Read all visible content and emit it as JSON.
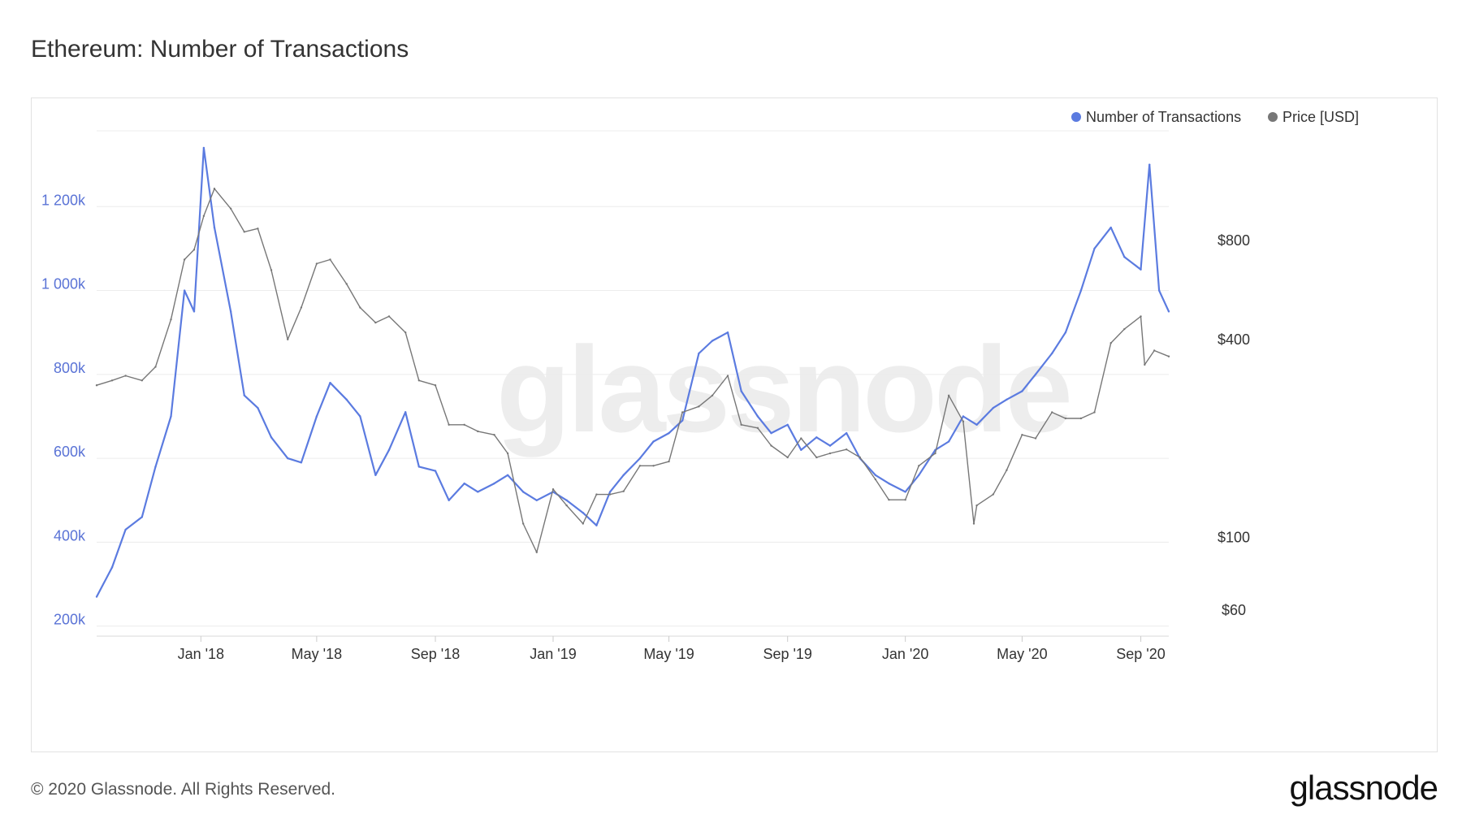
{
  "title": "Ethereum: Number of Transactions",
  "footer": "© 2020 Glassnode. All Rights Reserved.",
  "brand": "glassnode",
  "watermark": "glassnode",
  "colors": {
    "transactions": "#5b7be0",
    "price": "#777777",
    "grid": "#ececec"
  },
  "chart_data": {
    "type": "line",
    "x_range": [
      "2017-09-15",
      "2020-09-30"
    ],
    "left_axis": {
      "ticks": [
        200000,
        400000,
        600000,
        800000,
        1000000,
        1200000
      ],
      "tick_labels": [
        "200k",
        "400k",
        "600k",
        "800k",
        "1 000k",
        "1 200k"
      ],
      "range": [
        180000,
        1400000
      ]
    },
    "right_axis": {
      "scale": "log",
      "ticks": [
        60,
        100,
        400,
        800
      ],
      "tick_labels": [
        "$60",
        "$100",
        "$400",
        "$800"
      ]
    },
    "x_ticks": [
      {
        "date": "2018-01-01",
        "label": "Jan '18"
      },
      {
        "date": "2018-05-01",
        "label": "May '18"
      },
      {
        "date": "2018-09-01",
        "label": "Sep '18"
      },
      {
        "date": "2019-01-01",
        "label": "Jan '19"
      },
      {
        "date": "2019-05-01",
        "label": "May '19"
      },
      {
        "date": "2019-09-01",
        "label": "Sep '19"
      },
      {
        "date": "2020-01-01",
        "label": "Jan '20"
      },
      {
        "date": "2020-05-01",
        "label": "May '20"
      },
      {
        "date": "2020-09-01",
        "label": "Sep '20"
      }
    ],
    "legend": {
      "position": "top-right",
      "entries": [
        "Number of Transactions",
        "Price [USD]"
      ]
    },
    "series": [
      {
        "name": "Number of Transactions",
        "axis": "left",
        "points": [
          [
            "2017-09-15",
            270000
          ],
          [
            "2017-10-01",
            340000
          ],
          [
            "2017-10-15",
            430000
          ],
          [
            "2017-11-01",
            460000
          ],
          [
            "2017-11-15",
            580000
          ],
          [
            "2017-12-01",
            700000
          ],
          [
            "2017-12-15",
            1000000
          ],
          [
            "2017-12-25",
            950000
          ],
          [
            "2018-01-04",
            1340000
          ],
          [
            "2018-01-15",
            1150000
          ],
          [
            "2018-02-01",
            950000
          ],
          [
            "2018-02-15",
            750000
          ],
          [
            "2018-03-01",
            720000
          ],
          [
            "2018-03-15",
            650000
          ],
          [
            "2018-04-01",
            600000
          ],
          [
            "2018-04-15",
            590000
          ],
          [
            "2018-05-01",
            700000
          ],
          [
            "2018-05-15",
            780000
          ],
          [
            "2018-06-01",
            740000
          ],
          [
            "2018-06-15",
            700000
          ],
          [
            "2018-07-01",
            560000
          ],
          [
            "2018-07-15",
            620000
          ],
          [
            "2018-08-01",
            710000
          ],
          [
            "2018-08-15",
            580000
          ],
          [
            "2018-09-01",
            570000
          ],
          [
            "2018-09-15",
            500000
          ],
          [
            "2018-10-01",
            540000
          ],
          [
            "2018-10-15",
            520000
          ],
          [
            "2018-11-01",
            540000
          ],
          [
            "2018-11-15",
            560000
          ],
          [
            "2018-12-01",
            520000
          ],
          [
            "2018-12-15",
            500000
          ],
          [
            "2019-01-01",
            520000
          ],
          [
            "2019-01-15",
            500000
          ],
          [
            "2019-02-01",
            470000
          ],
          [
            "2019-02-15",
            440000
          ],
          [
            "2019-03-01",
            520000
          ],
          [
            "2019-03-15",
            560000
          ],
          [
            "2019-04-01",
            600000
          ],
          [
            "2019-04-15",
            640000
          ],
          [
            "2019-05-01",
            660000
          ],
          [
            "2019-05-15",
            690000
          ],
          [
            "2019-06-01",
            850000
          ],
          [
            "2019-06-15",
            880000
          ],
          [
            "2019-07-01",
            900000
          ],
          [
            "2019-07-15",
            760000
          ],
          [
            "2019-08-01",
            700000
          ],
          [
            "2019-08-15",
            660000
          ],
          [
            "2019-09-01",
            680000
          ],
          [
            "2019-09-15",
            620000
          ],
          [
            "2019-10-01",
            650000
          ],
          [
            "2019-10-15",
            630000
          ],
          [
            "2019-11-01",
            660000
          ],
          [
            "2019-11-15",
            600000
          ],
          [
            "2019-12-01",
            560000
          ],
          [
            "2019-12-15",
            540000
          ],
          [
            "2020-01-01",
            520000
          ],
          [
            "2020-01-15",
            560000
          ],
          [
            "2020-02-01",
            620000
          ],
          [
            "2020-02-15",
            640000
          ],
          [
            "2020-03-01",
            700000
          ],
          [
            "2020-03-15",
            680000
          ],
          [
            "2020-04-01",
            720000
          ],
          [
            "2020-04-15",
            740000
          ],
          [
            "2020-05-01",
            760000
          ],
          [
            "2020-05-15",
            800000
          ],
          [
            "2020-06-01",
            850000
          ],
          [
            "2020-06-15",
            900000
          ],
          [
            "2020-07-01",
            1000000
          ],
          [
            "2020-07-15",
            1100000
          ],
          [
            "2020-08-01",
            1150000
          ],
          [
            "2020-08-15",
            1080000
          ],
          [
            "2020-09-01",
            1050000
          ],
          [
            "2020-09-10",
            1300000
          ],
          [
            "2020-09-20",
            1000000
          ],
          [
            "2020-09-30",
            950000
          ]
        ]
      },
      {
        "name": "Price [USD]",
        "axis": "right",
        "points": [
          [
            "2017-09-15",
            290
          ],
          [
            "2017-10-01",
            300
          ],
          [
            "2017-10-15",
            310
          ],
          [
            "2017-11-01",
            300
          ],
          [
            "2017-11-15",
            330
          ],
          [
            "2017-12-01",
            460
          ],
          [
            "2017-12-15",
            700
          ],
          [
            "2017-12-25",
            750
          ],
          [
            "2018-01-04",
            950
          ],
          [
            "2018-01-15",
            1150
          ],
          [
            "2018-02-01",
            1000
          ],
          [
            "2018-02-15",
            850
          ],
          [
            "2018-03-01",
            870
          ],
          [
            "2018-03-15",
            650
          ],
          [
            "2018-04-01",
            400
          ],
          [
            "2018-04-15",
            500
          ],
          [
            "2018-05-01",
            680
          ],
          [
            "2018-05-15",
            700
          ],
          [
            "2018-06-01",
            590
          ],
          [
            "2018-06-15",
            500
          ],
          [
            "2018-07-01",
            450
          ],
          [
            "2018-07-15",
            470
          ],
          [
            "2018-08-01",
            420
          ],
          [
            "2018-08-15",
            300
          ],
          [
            "2018-09-01",
            290
          ],
          [
            "2018-09-15",
            220
          ],
          [
            "2018-10-01",
            220
          ],
          [
            "2018-10-15",
            210
          ],
          [
            "2018-11-01",
            205
          ],
          [
            "2018-11-15",
            180
          ],
          [
            "2018-12-01",
            110
          ],
          [
            "2018-12-15",
            90
          ],
          [
            "2019-01-01",
            140
          ],
          [
            "2019-01-15",
            125
          ],
          [
            "2019-02-01",
            110
          ],
          [
            "2019-02-15",
            135
          ],
          [
            "2019-03-01",
            135
          ],
          [
            "2019-03-15",
            138
          ],
          [
            "2019-04-01",
            165
          ],
          [
            "2019-04-15",
            165
          ],
          [
            "2019-05-01",
            170
          ],
          [
            "2019-05-15",
            240
          ],
          [
            "2019-06-01",
            250
          ],
          [
            "2019-06-15",
            270
          ],
          [
            "2019-07-01",
            310
          ],
          [
            "2019-07-15",
            220
          ],
          [
            "2019-08-01",
            215
          ],
          [
            "2019-08-15",
            190
          ],
          [
            "2019-09-01",
            175
          ],
          [
            "2019-09-15",
            200
          ],
          [
            "2019-10-01",
            175
          ],
          [
            "2019-10-15",
            180
          ],
          [
            "2019-11-01",
            185
          ],
          [
            "2019-11-15",
            175
          ],
          [
            "2019-12-01",
            150
          ],
          [
            "2019-12-15",
            130
          ],
          [
            "2020-01-01",
            130
          ],
          [
            "2020-01-15",
            165
          ],
          [
            "2020-02-01",
            180
          ],
          [
            "2020-02-15",
            270
          ],
          [
            "2020-03-01",
            225
          ],
          [
            "2020-03-12",
            110
          ],
          [
            "2020-03-15",
            125
          ],
          [
            "2020-04-01",
            135
          ],
          [
            "2020-04-15",
            160
          ],
          [
            "2020-05-01",
            205
          ],
          [
            "2020-05-15",
            200
          ],
          [
            "2020-06-01",
            240
          ],
          [
            "2020-06-15",
            230
          ],
          [
            "2020-07-01",
            230
          ],
          [
            "2020-07-15",
            240
          ],
          [
            "2020-08-01",
            390
          ],
          [
            "2020-08-15",
            430
          ],
          [
            "2020-09-01",
            470
          ],
          [
            "2020-09-05",
            335
          ],
          [
            "2020-09-15",
            370
          ],
          [
            "2020-09-30",
            355
          ]
        ]
      }
    ]
  }
}
